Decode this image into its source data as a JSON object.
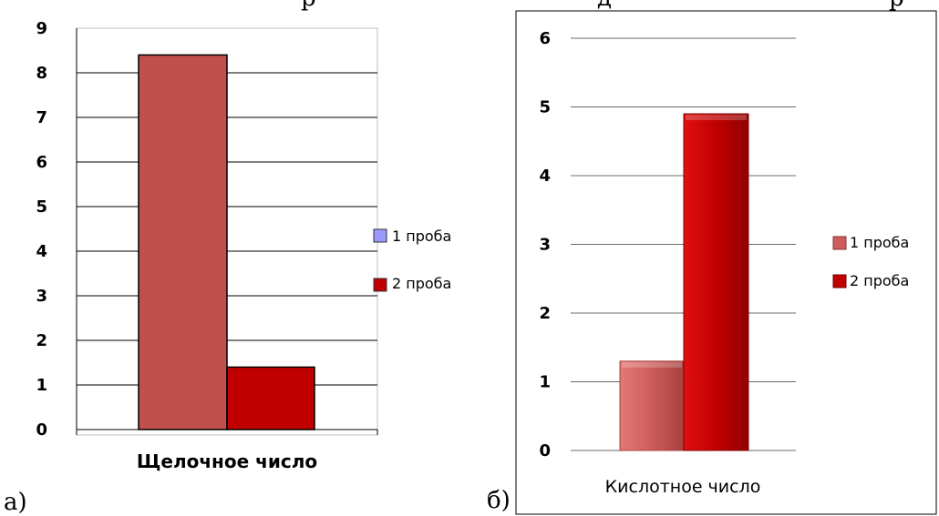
{
  "header_fragments": {
    "left": "р",
    "middle": "д",
    "right": "р"
  },
  "chart_data": [
    {
      "type": "bar",
      "panel_label": "а)",
      "categories": [
        "Щелочное число"
      ],
      "series": [
        {
          "name": "1 проба",
          "values": [
            8.4
          ],
          "color": "#C0504D",
          "legend_color": "#9999FF"
        },
        {
          "name": "2 проба",
          "values": [
            1.4
          ],
          "color": "#C00000",
          "legend_color": "#C00000"
        }
      ],
      "yticks": [
        "0",
        "1",
        "2",
        "3",
        "4",
        "5",
        "6",
        "7",
        "8",
        "9"
      ],
      "ylim": [
        0,
        9
      ],
      "grid": true,
      "legend_position": "right"
    },
    {
      "type": "bar",
      "panel_label": "б)",
      "categories": [
        "Кислотное число"
      ],
      "series": [
        {
          "name": "1 проба",
          "values": [
            1.3
          ],
          "color": "#CD5C5C",
          "legend_color": "#CD5C5C"
        },
        {
          "name": "2 проба",
          "values": [
            4.9
          ],
          "color": "#C00000",
          "legend_color": "#C00000"
        }
      ],
      "yticks": [
        "0",
        "1",
        "2",
        "3",
        "4",
        "5",
        "6"
      ],
      "ylim": [
        0,
        6
      ],
      "grid": true,
      "legend_position": "right"
    }
  ]
}
